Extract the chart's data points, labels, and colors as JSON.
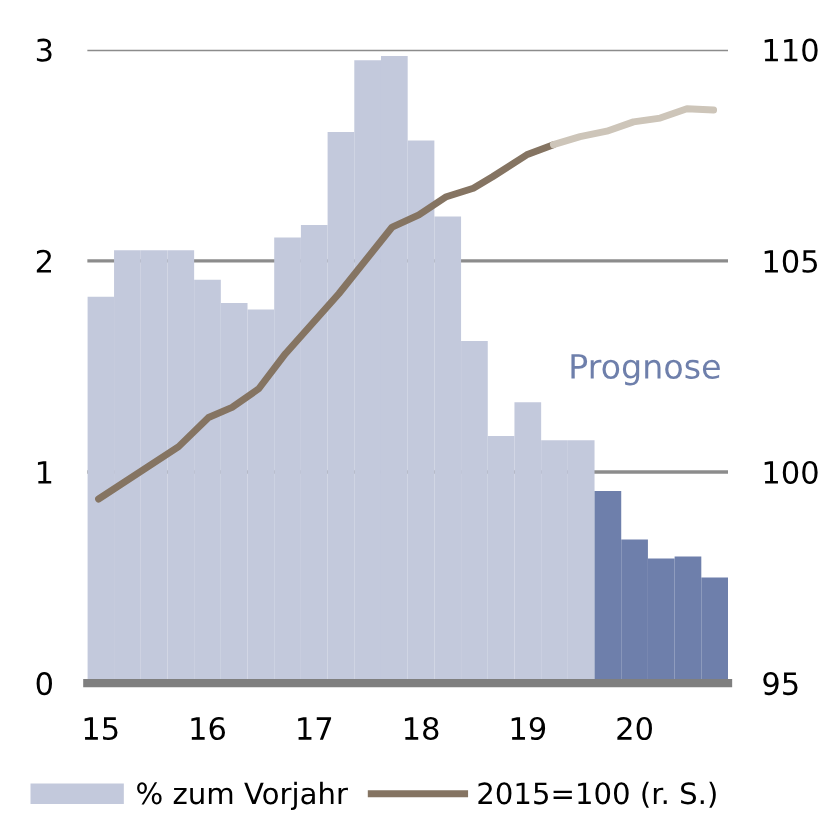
{
  "chart_data": {
    "type": "bar",
    "x": [
      15,
      15.25,
      15.5,
      15.75,
      16,
      16.25,
      16.5,
      16.75,
      17,
      17.25,
      17.5,
      17.75,
      18,
      18.25,
      18.5,
      18.75,
      19,
      19.25,
      19.5,
      19.75,
      20,
      20.25,
      20.5,
      20.75
    ],
    "series": [
      {
        "name": "% zum Vorjahr",
        "color": "#c3c9dc",
        "colors": [
          "#c3c9dc",
          "#c3c9dc",
          "#c3c9dc",
          "#c3c9dc",
          "#c3c9dc",
          "#c3c9dc",
          "#c3c9dc",
          "#c3c9dc",
          "#c3c9dc",
          "#c3c9dc",
          "#c3c9dc",
          "#c3c9dc",
          "#c3c9dc",
          "#c3c9dc",
          "#c3c9dc",
          "#c3c9dc",
          "#c3c9dc",
          "#c3c9dc",
          "#c3c9dc",
          "#6e7fab",
          "#6e7fab",
          "#6e7fab",
          "#6e7fab",
          "#6e7fab"
        ],
        "values": [
          1.83,
          2.05,
          2.05,
          2.05,
          1.91,
          1.8,
          1.77,
          2.11,
          2.17,
          2.61,
          2.95,
          2.97,
          2.57,
          2.21,
          1.62,
          1.17,
          1.33,
          1.15,
          1.15,
          0.91,
          0.68,
          0.59,
          0.6,
          0.5
        ]
      },
      {
        "name": "2015=100 (r. S.)",
        "type": "line",
        "axis": "y2",
        "color": "#857462",
        "x": [
          14.98,
          15.73,
          16.01,
          16.23,
          16.48,
          16.73,
          17.23,
          17.73,
          17.98,
          18.23,
          18.49,
          18.67,
          18.99,
          19.24
        ],
        "values": [
          99.36,
          100.6,
          101.29,
          101.53,
          101.97,
          102.8,
          104.22,
          105.8,
          106.09,
          106.51,
          106.72,
          106.99,
          107.51,
          107.75
        ]
      },
      {
        "type": "line",
        "axis": "y2",
        "color": "#cdc5b9",
        "x": [
          19.24,
          19.49,
          19.74,
          19.99,
          20.24,
          20.49,
          20.74
        ],
        "values": [
          107.75,
          107.94,
          108.07,
          108.29,
          108.38,
          108.6,
          108.57
        ]
      }
    ],
    "xlim": [
      14.875,
      20.875
    ],
    "xticks": [
      15,
      16,
      17,
      18,
      19,
      20
    ],
    "ylim": [
      0,
      3
    ],
    "yticks": [
      0,
      1,
      2,
      3
    ],
    "y2lim": [
      95,
      110
    ],
    "y2ticks": [
      95,
      100,
      105,
      110
    ],
    "annotations": [
      "Prognose"
    ],
    "grid": "y",
    "legend": "bottom",
    "line_style": "solid",
    "marker": "none"
  }
}
